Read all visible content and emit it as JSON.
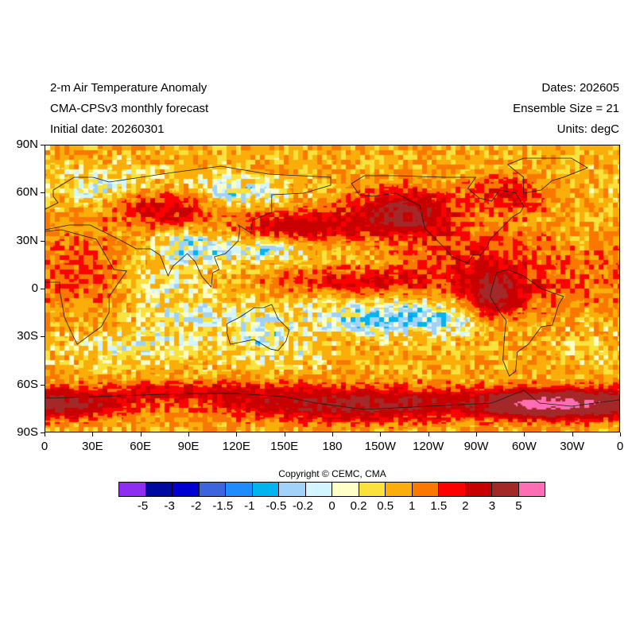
{
  "header": {
    "title": "2-m Air Temperature Anomaly",
    "model": "CMA-CPSv3 monthly forecast",
    "initial_date": "Initial date: 20260301",
    "dates": "Dates: 202605",
    "ensemble": "Ensemble Size = 21",
    "units": "Units: degC"
  },
  "map": {
    "projection": "cylindrical equidistant",
    "lon_range": [
      0,
      360
    ],
    "lat_range": [
      -90,
      90
    ],
    "lat_labels": [
      "90N",
      "60N",
      "30N",
      "0",
      "30S",
      "60S",
      "90S"
    ],
    "lon_labels": [
      "0",
      "30E",
      "60E",
      "90E",
      "120E",
      "150E",
      "180",
      "150W",
      "120W",
      "90W",
      "60W",
      "30W",
      "0"
    ]
  },
  "copyright": "Copyright © CEMC, CMA",
  "colorbar": {
    "colors": [
      "#8d2ef0",
      "#000aa0",
      "#0000d2",
      "#3c64dc",
      "#1e8cff",
      "#00b4f0",
      "#a0d2fa",
      "#d2f5ff",
      "#ffffc8",
      "#fae13c",
      "#fbae0a",
      "#fa7800",
      "#ff0000",
      "#c80000",
      "#a52828",
      "#ff6eb4"
    ],
    "labels": [
      "-5",
      "-3",
      "-2",
      "-1.5",
      "-1",
      "-0.5",
      "-0.2",
      "0",
      "0.2",
      "0.5",
      "1",
      "1.5",
      "2",
      "3",
      "5"
    ],
    "thresholds": [
      -5,
      -3,
      -2,
      -1.5,
      -1,
      -0.5,
      -0.2,
      0,
      0.2,
      0.5,
      1,
      1.5,
      2,
      3,
      5
    ]
  }
}
